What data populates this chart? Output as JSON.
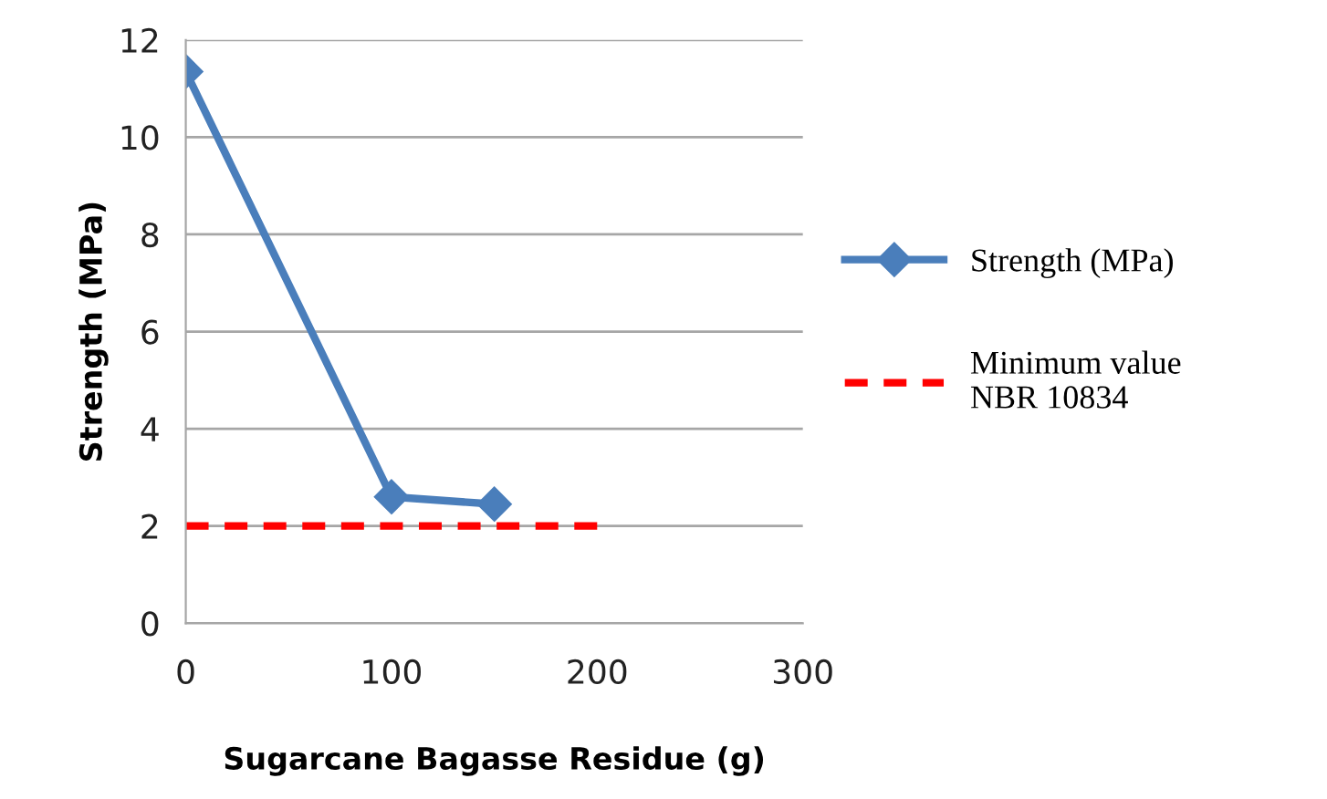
{
  "chart_data": {
    "type": "line",
    "xlabel": "Sugarcane Bagasse Residue (g)",
    "ylabel": "Strength (MPa)",
    "xlim": [
      0,
      300
    ],
    "xticks": [
      0,
      100,
      200,
      300
    ],
    "ylim": [
      0,
      12
    ],
    "yticks": [
      0,
      2,
      4,
      6,
      8,
      10,
      12
    ],
    "grid": "y",
    "legend": "right",
    "series": [
      {
        "name": "Strength (MPa)",
        "color": "#4a7ebb",
        "x": [
          0,
          100,
          150
        ],
        "values": [
          11.35,
          2.6,
          2.45
        ],
        "marker": "diamond",
        "line_style": "solid"
      },
      {
        "name": "Minimum value\nNBR 10834",
        "color": "#ff0000",
        "x": [
          0,
          200
        ],
        "values": [
          2,
          2
        ],
        "marker": "none",
        "line_style": "dashed"
      }
    ]
  }
}
